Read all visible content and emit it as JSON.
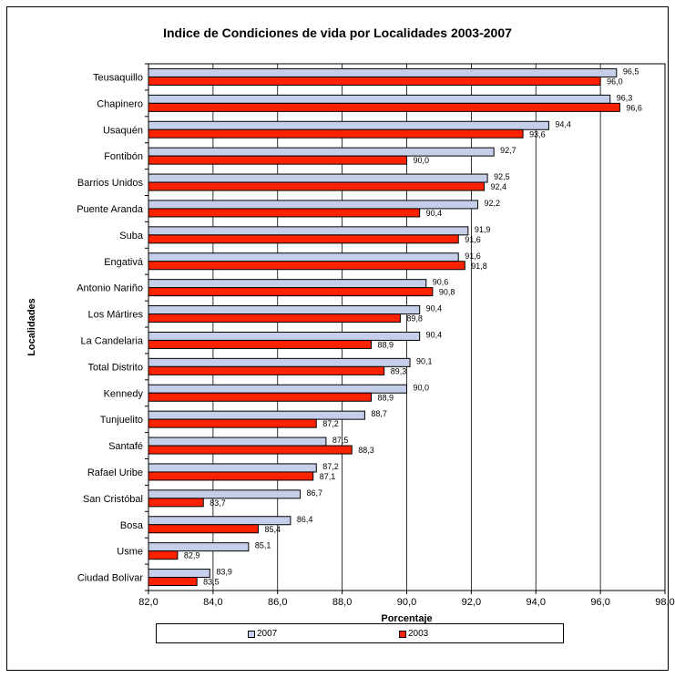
{
  "chart_data": {
    "type": "bar",
    "orientation": "horizontal",
    "title": "Indice de Condiciones de vida por Localidades 2003-2007",
    "xlabel": "Porcentaje",
    "ylabel": "Localidades",
    "xlim": [
      82.0,
      98.0
    ],
    "xticks": [
      "82,0",
      "84,0",
      "86,0",
      "88,0",
      "90,0",
      "92,0",
      "94,0",
      "96,0",
      "98,0"
    ],
    "grid": true,
    "legend_position": "bottom",
    "categories": [
      "Teusaquillo",
      "Chapinero",
      "Usaquén",
      "Fontibón",
      "Barrios Unidos",
      "Puente Aranda",
      "Suba",
      "Engativá",
      "Antonio Nariño",
      "Los Mártires",
      "La Candelaria",
      "Total Distrito",
      "Kennedy",
      "Tunjuelito",
      "Santafé",
      "Rafael Uribe",
      "San Cristóbal",
      "Bosa",
      "Usme",
      "Ciudad Bolívar"
    ],
    "series": [
      {
        "name": "2007",
        "color": "#c5cfe9",
        "values": [
          96.5,
          96.3,
          94.4,
          92.7,
          92.5,
          92.2,
          91.9,
          91.6,
          90.6,
          90.4,
          90.4,
          90.1,
          90.0,
          88.7,
          87.5,
          87.2,
          86.7,
          86.4,
          85.1,
          83.9
        ],
        "labels": [
          "96,5",
          "96,3",
          "94,4",
          "92,7",
          "92,5",
          "92,2",
          "91,9",
          "91,6",
          "90,6",
          "90,4",
          "90,4",
          "90,1",
          "90,0",
          "88,7",
          "87,5",
          "87,2",
          "86,7",
          "86,4",
          "85,1",
          "83,9"
        ]
      },
      {
        "name": "2003",
        "color": "#ff2200",
        "values": [
          96.0,
          96.6,
          93.6,
          90.0,
          92.4,
          90.4,
          91.6,
          91.8,
          90.8,
          89.8,
          88.9,
          89.3,
          88.9,
          87.2,
          88.3,
          87.1,
          83.7,
          85.4,
          82.9,
          83.5
        ],
        "labels": [
          "96,0",
          "96,6",
          "93,6",
          "90,0",
          "92,4",
          "90,4",
          "91,6",
          "91,8",
          "90,8",
          "89,8",
          "88,9",
          "89,3",
          "88,9",
          "87,2",
          "88,3",
          "87,1",
          "83,7",
          "85,4",
          "82,9",
          "83,5"
        ]
      }
    ]
  }
}
